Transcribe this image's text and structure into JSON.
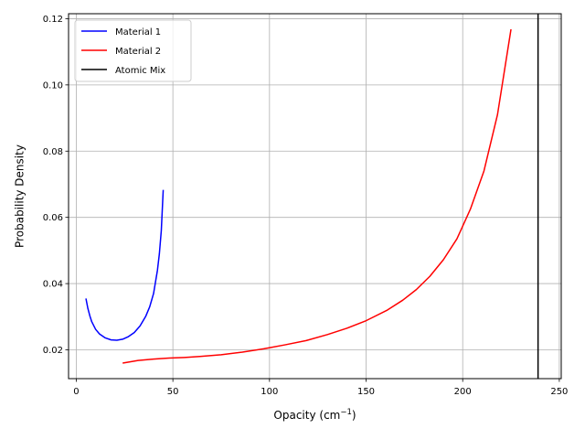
{
  "chart_data": {
    "type": "line",
    "xlabel": "Opacity (cm",
    "xlabel_sup": "−1",
    "xlabel_close": ")",
    "ylabel": "Probability Density",
    "xlim": [
      -4,
      251
    ],
    "ylim": [
      0.0113,
      0.1215
    ],
    "xticks": [
      0,
      50,
      100,
      150,
      200,
      250
    ],
    "xtick_labels": [
      "0",
      "50",
      "100",
      "150",
      "200",
      "250"
    ],
    "yticks": [
      0.02,
      0.04,
      0.06,
      0.08,
      0.1,
      0.12
    ],
    "ytick_labels": [
      "0.02",
      "0.04",
      "0.06",
      "0.08",
      "0.10",
      "0.12"
    ],
    "grid": true,
    "legend_position": "top-left",
    "series": [
      {
        "name": "Material 1",
        "color": "#0000ff",
        "x": [
          5,
          6,
          7,
          8,
          10,
          12,
          15,
          18,
          21,
          24,
          27,
          30,
          33,
          36,
          38,
          40,
          42,
          43,
          44,
          45
        ],
        "y": [
          0.0355,
          0.0325,
          0.0303,
          0.0285,
          0.0262,
          0.0248,
          0.0236,
          0.023,
          0.0229,
          0.0232,
          0.024,
          0.0252,
          0.0272,
          0.0302,
          0.033,
          0.037,
          0.044,
          0.049,
          0.056,
          0.0683
        ]
      },
      {
        "name": "Material 2",
        "color": "#ff0000",
        "x": [
          24,
          32,
          40,
          48,
          56,
          64,
          75,
          86,
          97,
          108,
          119,
          130,
          140,
          150,
          161,
          169,
          176,
          183,
          190,
          197,
          204,
          211,
          218,
          225
        ],
        "y": [
          0.016,
          0.0168,
          0.0172,
          0.0175,
          0.0177,
          0.018,
          0.0185,
          0.0193,
          0.0203,
          0.0215,
          0.0228,
          0.0246,
          0.0265,
          0.0288,
          0.032,
          0.035,
          0.0382,
          0.0422,
          0.0472,
          0.0535,
          0.0625,
          0.074,
          0.091,
          0.1168
        ]
      },
      {
        "name": "Atomic Mix",
        "color": "#000000",
        "vline_x": 239
      }
    ]
  }
}
